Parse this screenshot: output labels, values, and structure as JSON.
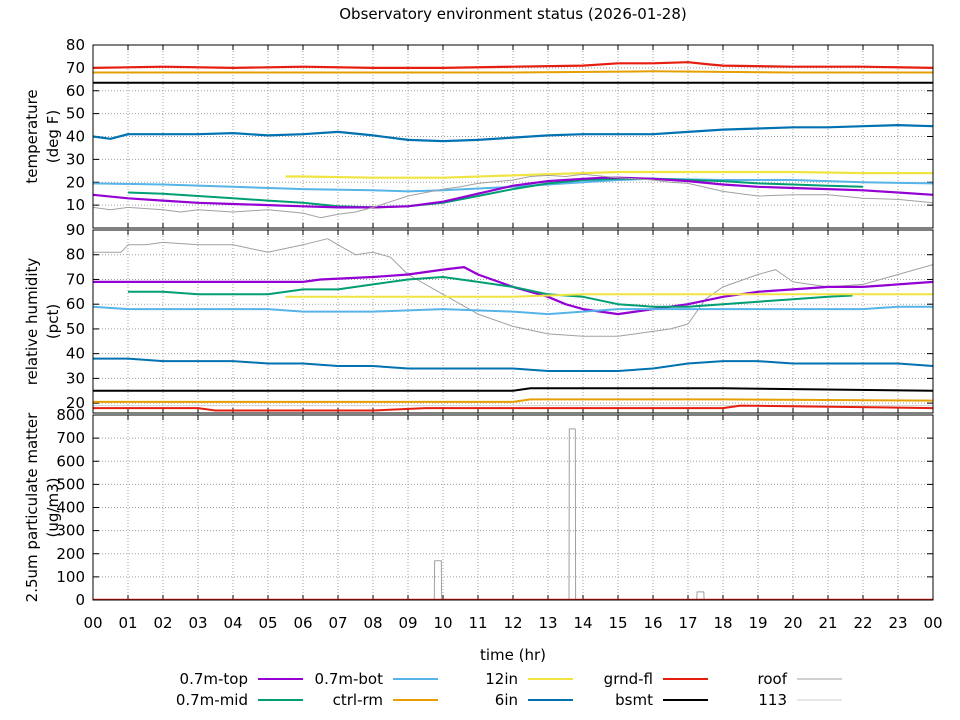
{
  "chart_data": {
    "type": "line",
    "title": "Observatory environment status (2026-01-28)",
    "xlabel": "time (hr)",
    "xlim": [
      0,
      24
    ],
    "x_ticks": [
      "00",
      "01",
      "02",
      "03",
      "04",
      "05",
      "06",
      "07",
      "08",
      "09",
      "10",
      "11",
      "12",
      "13",
      "14",
      "15",
      "16",
      "17",
      "18",
      "19",
      "20",
      "21",
      "22",
      "23",
      "00"
    ],
    "grid": true,
    "legend_position": "bottom",
    "legend": [
      {
        "name": "0.7m-top",
        "color": "#9400d3"
      },
      {
        "name": "0.7m-mid",
        "color": "#009e73"
      },
      {
        "name": "0.7m-bot",
        "color": "#56b4e9"
      },
      {
        "name": "ctrl-rm",
        "color": "#e69f00"
      },
      {
        "name": "12in",
        "color": "#f0e442"
      },
      {
        "name": "6in",
        "color": "#0072b2"
      },
      {
        "name": "grnd-fl",
        "color": "#e51e10"
      },
      {
        "name": "bsmt",
        "color": "#000000"
      },
      {
        "name": "roof",
        "color": "#a0a0a0"
      },
      {
        "name": "113",
        "color": "#d0d0d0"
      }
    ],
    "panels": [
      {
        "ylabel": [
          "temperature",
          "(deg F)"
        ],
        "ylim": [
          0,
          80
        ],
        "y_ticks": [
          10,
          20,
          30,
          40,
          50,
          60,
          70,
          80
        ],
        "series": [
          {
            "name": "grnd-fl",
            "color": "#e51e10",
            "width": 2.2,
            "x": [
              0,
              2,
              4,
              6,
              8,
              10,
              12,
              14,
              15,
              16,
              17,
              17.6,
              18,
              20,
              22,
              24
            ],
            "y": [
              70,
              70.5,
              70,
              70.5,
              70,
              70,
              70.5,
              71,
              72,
              72,
              72.5,
              71.5,
              71,
              70.5,
              70.5,
              70
            ]
          },
          {
            "name": "ctrl-rm",
            "color": "#e69f00",
            "width": 2,
            "x": [
              0,
              4,
              8,
              12,
              16,
              20,
              24
            ],
            "y": [
              68,
              68,
              68,
              68,
              68.5,
              68,
              68
            ]
          },
          {
            "name": "bsmt",
            "color": "#000000",
            "width": 2,
            "x": [
              0,
              6,
              12,
              18,
              24
            ],
            "y": [
              63.5,
              63.5,
              63.5,
              63.5,
              63.5
            ]
          },
          {
            "name": "6in",
            "color": "#0072b2",
            "width": 2.2,
            "x": [
              0,
              0.5,
              1,
              2,
              3,
              4,
              5,
              6,
              7,
              8,
              9,
              10,
              11,
              12,
              13,
              14,
              15,
              16,
              17,
              18,
              19,
              20,
              21,
              22,
              23,
              24
            ],
            "y": [
              40,
              39,
              41,
              41,
              41,
              41.5,
              40.5,
              41,
              42,
              40.5,
              38.5,
              38,
              38.5,
              39.5,
              40.5,
              41,
              41,
              41,
              42,
              43,
              43.5,
              44,
              44,
              44.5,
              45,
              44.5
            ]
          },
          {
            "name": "12in",
            "color": "#f0e442",
            "width": 2.2,
            "x": [
              5.5,
              6,
              8,
              10,
              12,
              13,
              14,
              15,
              16,
              18,
              20,
              22,
              24
            ],
            "y": [
              22.5,
              22.5,
              22,
              22,
              23,
              23.5,
              24,
              24.5,
              24.5,
              24.5,
              24.5,
              24,
              24
            ]
          },
          {
            "name": "0.7m-bot",
            "color": "#56b4e9",
            "width": 2,
            "x": [
              0,
              2,
              4,
              6,
              8,
              9,
              10,
              12,
              14,
              15,
              16,
              18,
              20,
              22,
              24
            ],
            "y": [
              19.5,
              19,
              18,
              17,
              16.5,
              16,
              16.5,
              18,
              20,
              21,
              21.5,
              21,
              21,
              20,
              19.5
            ]
          },
          {
            "name": "0.7m-mid",
            "color": "#009e73",
            "width": 2,
            "x": [
              1,
              2,
              3,
              4,
              5,
              6,
              7,
              8,
              9,
              10,
              11,
              12,
              13,
              14,
              15,
              16,
              17,
              18,
              19,
              20,
              21,
              22
            ],
            "y": [
              15.5,
              15,
              14,
              13,
              12,
              11,
              9.5,
              9,
              9.5,
              11,
              14,
              17,
              19.5,
              21,
              21.5,
              21.5,
              21,
              20.5,
              19.5,
              19,
              18.5,
              18
            ]
          },
          {
            "name": "0.7m-top",
            "color": "#9400d3",
            "width": 2.2,
            "x": [
              0,
              1,
              2,
              3,
              4,
              5,
              6,
              7,
              8,
              9,
              10,
              11,
              12,
              13,
              14,
              14.6,
              15,
              16,
              17,
              18,
              19,
              20,
              21,
              22,
              23,
              24
            ],
            "y": [
              14.5,
              13,
              12,
              11,
              10.5,
              10,
              9.5,
              9,
              9,
              9.5,
              11.5,
              15,
              18.5,
              20.5,
              21.5,
              22,
              22,
              21.5,
              20.5,
              19,
              18,
              17.5,
              17,
              16.5,
              15.5,
              14.5
            ]
          },
          {
            "name": "roof",
            "color": "#a0a0a0",
            "width": 1,
            "x": [
              0,
              0.5,
              1,
              2,
              2.5,
              3,
              4,
              5,
              6,
              6.5,
              7,
              7.5,
              8,
              8.5,
              9,
              10,
              10.5,
              11,
              12,
              12.5,
              13,
              13.5,
              14,
              15,
              16,
              16.5,
              17,
              17.3,
              18,
              18.5,
              19,
              20,
              21,
              22,
              23,
              24
            ],
            "y": [
              9,
              8,
              9,
              8,
              7,
              8,
              7,
              8,
              6.5,
              4.5,
              6,
              7,
              9,
              11.5,
              14,
              17,
              18,
              19.5,
              21,
              22.5,
              23,
              22.5,
              23.5,
              22,
              21,
              20,
              19.5,
              18.5,
              16,
              15,
              14,
              14.5,
              14.5,
              13,
              12.5,
              11
            ]
          }
        ]
      },
      {
        "ylabel": [
          "relative humidity",
          "(pct)"
        ],
        "ylim": [
          16,
          90
        ],
        "y_ticks": [
          20,
          30,
          40,
          50,
          60,
          70,
          80,
          90
        ],
        "series": [
          {
            "name": "roof",
            "color": "#a0a0a0",
            "width": 1,
            "x": [
              0,
              0.8,
              1,
              1.5,
              2,
              3,
              4,
              5,
              6,
              6.7,
              7,
              7.5,
              8,
              8.5,
              9,
              10,
              10.5,
              11,
              12,
              13,
              14,
              15,
              16,
              16.5,
              17,
              17.5,
              18,
              19,
              19.5,
              20,
              21,
              22,
              23,
              24
            ],
            "y": [
              81,
              81,
              84,
              84,
              85,
              84,
              84,
              81,
              84,
              86.5,
              84,
              80,
              81,
              79,
              72,
              64,
              60,
              56,
              51,
              48,
              47,
              47,
              49,
              50,
              52,
              62,
              67,
              72,
              74,
              69,
              67,
              68,
              72,
              76
            ]
          },
          {
            "name": "113",
            "color": "#d0d0d0",
            "width": 1,
            "x": [
              0,
              24
            ],
            "y": [
              19,
              19
            ]
          },
          {
            "name": "0.7m-top",
            "color": "#9400d3",
            "width": 2.2,
            "x": [
              0,
              6,
              6.5,
              8,
              9,
              10,
              10.6,
              11,
              12,
              13,
              13.5,
              14,
              14.5,
              15,
              15.5,
              16,
              17,
              18,
              19,
              20,
              21,
              22,
              23,
              24
            ],
            "y": [
              69,
              69,
              70,
              71,
              72,
              74,
              75,
              72,
              67,
              63,
              60,
              58,
              57,
              56,
              57,
              58,
              60,
              63,
              65,
              66,
              67,
              67,
              68,
              69
            ]
          },
          {
            "name": "0.7m-mid",
            "color": "#009e73",
            "width": 2,
            "x": [
              1,
              2,
              3,
              4,
              5,
              6,
              7,
              8,
              9,
              10,
              11,
              12,
              13,
              14,
              15,
              16,
              17,
              18,
              19,
              20,
              21,
              21.7
            ],
            "y": [
              65,
              65,
              64,
              64,
              64,
              66,
              66,
              68,
              70,
              71,
              69,
              67,
              64,
              63,
              60,
              59,
              59,
              60,
              61,
              62,
              63,
              63.5
            ]
          },
          {
            "name": "12in",
            "color": "#f0e442",
            "width": 2,
            "x": [
              5.5,
              8,
              10,
              12,
              14,
              16,
              18,
              20,
              22,
              24
            ],
            "y": [
              63,
              63,
              63,
              63,
              64,
              64,
              64,
              64,
              64,
              64
            ]
          },
          {
            "name": "0.7m-bot",
            "color": "#56b4e9",
            "width": 2,
            "x": [
              0,
              1,
              3,
              5,
              6,
              8,
              10,
              12,
              13,
              15,
              16,
              17,
              19,
              20,
              22,
              23,
              24
            ],
            "y": [
              59,
              58,
              58,
              58,
              57,
              57,
              58,
              57,
              56,
              58,
              58,
              58,
              58,
              58,
              58,
              59,
              59
            ]
          },
          {
            "name": "6in",
            "color": "#0072b2",
            "width": 2,
            "x": [
              0,
              1,
              2,
              3,
              4,
              5,
              6,
              7,
              8,
              9,
              10,
              11,
              12,
              13,
              14,
              15,
              16,
              17,
              18,
              19,
              20,
              21,
              22,
              23,
              24
            ],
            "y": [
              38,
              38,
              37,
              37,
              37,
              36,
              36,
              35,
              35,
              34,
              34,
              34,
              34,
              33,
              33,
              33,
              34,
              36,
              37,
              37,
              36,
              36,
              36,
              36,
              35
            ]
          },
          {
            "name": "bsmt",
            "color": "#000000",
            "width": 2,
            "x": [
              0,
              6,
              12,
              12.5,
              18,
              24
            ],
            "y": [
              25,
              25,
              25,
              26,
              26,
              25
            ]
          },
          {
            "name": "ctrl-rm",
            "color": "#e69f00",
            "width": 2,
            "x": [
              0,
              6,
              12,
              12.5,
              18,
              24
            ],
            "y": [
              20.5,
              20.5,
              20.5,
              21.5,
              21.5,
              21
            ]
          },
          {
            "name": "grnd-fl",
            "color": "#e51e10",
            "width": 2,
            "x": [
              0,
              3,
              3.5,
              8,
              9.5,
              12,
              18,
              18.5,
              24
            ],
            "y": [
              18,
              18,
              17,
              17,
              18,
              18,
              18,
              19,
              18
            ]
          }
        ]
      },
      {
        "ylabel": [
          "2.5um particulate matter",
          "(ug/m3)"
        ],
        "ylim": [
          0,
          800
        ],
        "y_ticks": [
          0,
          100,
          200,
          300,
          400,
          500,
          600,
          700,
          800
        ],
        "series": [
          {
            "name": "roof",
            "color": "#a0a0a0",
            "width": 1,
            "x": [
              0,
              9.75,
              9.76,
              9.95,
              9.96,
              13.6,
              13.61,
              13.78,
              13.79,
              17.25,
              17.26,
              17.45,
              17.46,
              24
            ],
            "y": [
              2,
              2,
              170,
              170,
              2,
              2,
              740,
              740,
              2,
              2,
              35,
              35,
              2,
              2
            ]
          },
          {
            "name": "grnd-fl",
            "color": "#e51e10",
            "width": 1.2,
            "x": [
              0,
              24
            ],
            "y": [
              3,
              3
            ]
          }
        ]
      }
    ]
  }
}
